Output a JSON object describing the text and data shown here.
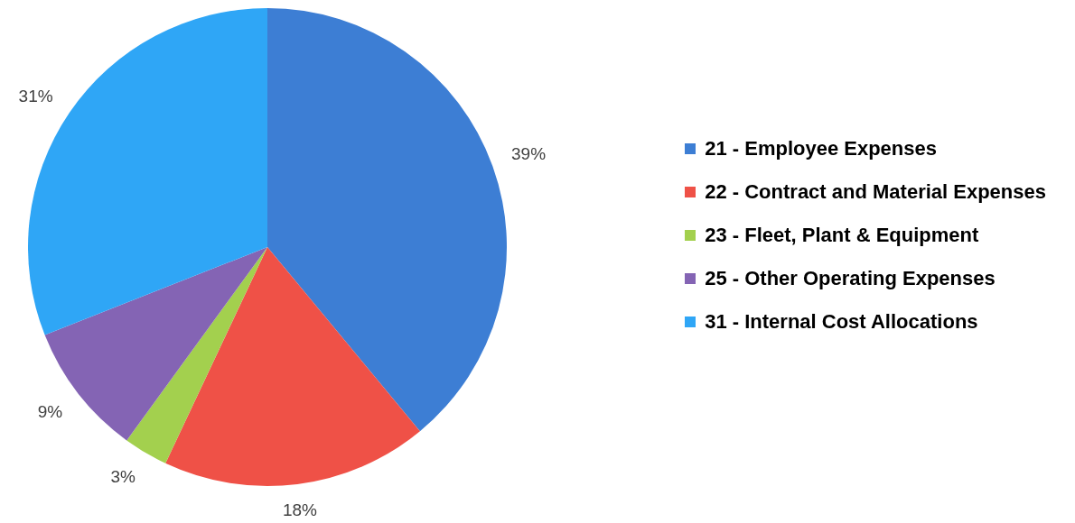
{
  "chart_data": {
    "type": "pie",
    "categories": [
      "21 - Employee Expenses",
      "22 - Contract and Material Expenses",
      "23 - Fleet, Plant & Equipment",
      "25 - Other Operating Expenses",
      "31 - Internal Cost Allocations"
    ],
    "values": [
      39,
      18,
      3,
      9,
      31
    ],
    "colors": [
      "#3d7ed4",
      "#ef5147",
      "#a3d04e",
      "#8464b4",
      "#2fa6f6"
    ],
    "value_labels": [
      "39%",
      "18%",
      "3%",
      "9%",
      "31%"
    ],
    "legend": "right"
  }
}
